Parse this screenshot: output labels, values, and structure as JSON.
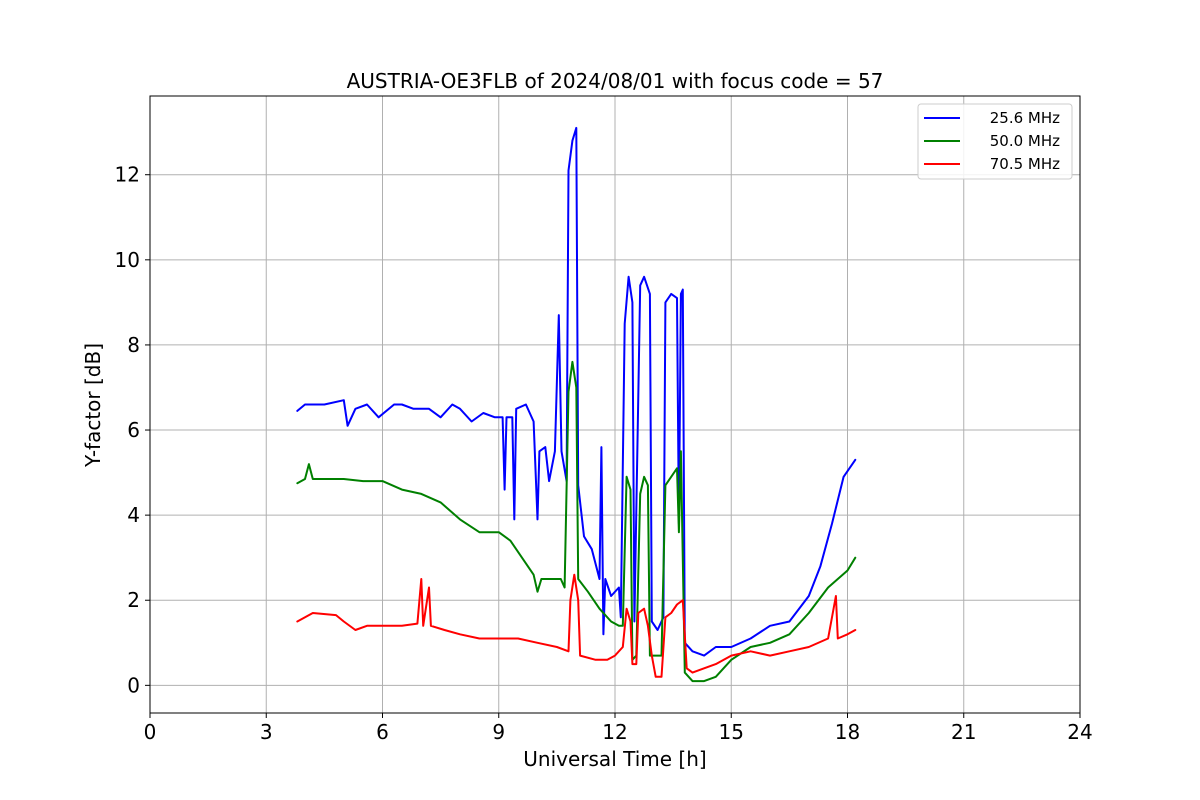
{
  "chart_data": {
    "type": "line",
    "title": "AUSTRIA-OE3FLB of 2024/08/01 with focus code = 57",
    "xlabel": "Universal Time [h]",
    "ylabel": "Y-factor [dB]",
    "xlim": [
      0,
      24
    ],
    "ylim": [
      -0.65,
      13.85
    ],
    "xticks": [
      0,
      3,
      6,
      9,
      12,
      15,
      18,
      21,
      24
    ],
    "yticks": [
      0,
      2,
      4,
      6,
      8,
      10,
      12
    ],
    "grid": true,
    "legend_position": "top-right",
    "series": [
      {
        "name": "25.6 MHz",
        "color": "#0000ff",
        "points": [
          [
            3.8,
            6.45
          ],
          [
            4.0,
            6.6
          ],
          [
            4.5,
            6.6
          ],
          [
            5.0,
            6.7
          ],
          [
            5.1,
            6.1
          ],
          [
            5.3,
            6.5
          ],
          [
            5.6,
            6.6
          ],
          [
            5.9,
            6.3
          ],
          [
            6.3,
            6.6
          ],
          [
            6.5,
            6.6
          ],
          [
            6.8,
            6.5
          ],
          [
            7.2,
            6.5
          ],
          [
            7.5,
            6.3
          ],
          [
            7.8,
            6.6
          ],
          [
            8.0,
            6.5
          ],
          [
            8.3,
            6.2
          ],
          [
            8.6,
            6.4
          ],
          [
            8.9,
            6.3
          ],
          [
            9.1,
            6.3
          ],
          [
            9.15,
            4.6
          ],
          [
            9.2,
            6.3
          ],
          [
            9.35,
            6.3
          ],
          [
            9.4,
            3.9
          ],
          [
            9.45,
            6.5
          ],
          [
            9.7,
            6.6
          ],
          [
            9.9,
            6.2
          ],
          [
            10.0,
            3.9
          ],
          [
            10.05,
            5.5
          ],
          [
            10.2,
            5.6
          ],
          [
            10.3,
            4.8
          ],
          [
            10.45,
            5.5
          ],
          [
            10.55,
            8.7
          ],
          [
            10.62,
            5.5
          ],
          [
            10.75,
            4.8
          ],
          [
            10.8,
            12.1
          ],
          [
            10.9,
            12.8
          ],
          [
            11.0,
            13.1
          ],
          [
            11.05,
            4.7
          ],
          [
            11.2,
            3.5
          ],
          [
            11.4,
            3.2
          ],
          [
            11.6,
            2.5
          ],
          [
            11.65,
            5.6
          ],
          [
            11.7,
            1.2
          ],
          [
            11.75,
            2.5
          ],
          [
            11.9,
            2.1
          ],
          [
            12.1,
            2.3
          ],
          [
            12.15,
            1.6
          ],
          [
            12.25,
            8.5
          ],
          [
            12.35,
            9.6
          ],
          [
            12.45,
            9.0
          ],
          [
            12.5,
            1.5
          ],
          [
            12.65,
            9.4
          ],
          [
            12.75,
            9.6
          ],
          [
            12.9,
            9.2
          ],
          [
            12.95,
            1.5
          ],
          [
            13.1,
            1.3
          ],
          [
            13.25,
            1.6
          ],
          [
            13.3,
            9.0
          ],
          [
            13.45,
            9.2
          ],
          [
            13.6,
            9.1
          ],
          [
            13.65,
            3.8
          ],
          [
            13.7,
            9.2
          ],
          [
            13.75,
            9.3
          ],
          [
            13.8,
            1.0
          ],
          [
            14.0,
            0.8
          ],
          [
            14.3,
            0.7
          ],
          [
            14.6,
            0.9
          ],
          [
            15.0,
            0.9
          ],
          [
            15.5,
            1.1
          ],
          [
            16.0,
            1.4
          ],
          [
            16.5,
            1.5
          ],
          [
            17.0,
            2.1
          ],
          [
            17.3,
            2.8
          ],
          [
            17.6,
            3.8
          ],
          [
            17.9,
            4.9
          ],
          [
            18.2,
            5.3
          ]
        ]
      },
      {
        "name": "50.0 MHz",
        "color": "#008000",
        "points": [
          [
            3.8,
            4.75
          ],
          [
            4.0,
            4.85
          ],
          [
            4.1,
            5.2
          ],
          [
            4.2,
            4.85
          ],
          [
            5.0,
            4.85
          ],
          [
            5.5,
            4.8
          ],
          [
            6.0,
            4.8
          ],
          [
            6.5,
            4.6
          ],
          [
            7.0,
            4.5
          ],
          [
            7.5,
            4.3
          ],
          [
            8.0,
            3.9
          ],
          [
            8.5,
            3.6
          ],
          [
            9.0,
            3.6
          ],
          [
            9.3,
            3.4
          ],
          [
            9.6,
            3.0
          ],
          [
            9.9,
            2.6
          ],
          [
            10.0,
            2.2
          ],
          [
            10.1,
            2.5
          ],
          [
            10.6,
            2.5
          ],
          [
            10.7,
            2.3
          ],
          [
            10.8,
            6.9
          ],
          [
            10.9,
            7.6
          ],
          [
            11.0,
            7.0
          ],
          [
            11.05,
            2.5
          ],
          [
            11.3,
            2.2
          ],
          [
            11.6,
            1.8
          ],
          [
            11.9,
            1.5
          ],
          [
            12.1,
            1.4
          ],
          [
            12.2,
            1.4
          ],
          [
            12.3,
            4.9
          ],
          [
            12.4,
            4.6
          ],
          [
            12.45,
            0.6
          ],
          [
            12.55,
            0.7
          ],
          [
            12.65,
            4.5
          ],
          [
            12.75,
            4.9
          ],
          [
            12.85,
            4.7
          ],
          [
            12.9,
            0.7
          ],
          [
            13.1,
            0.7
          ],
          [
            13.2,
            0.7
          ],
          [
            13.3,
            4.7
          ],
          [
            13.6,
            5.1
          ],
          [
            13.65,
            3.6
          ],
          [
            13.7,
            5.5
          ],
          [
            13.8,
            0.3
          ],
          [
            14.0,
            0.1
          ],
          [
            14.3,
            0.1
          ],
          [
            14.6,
            0.2
          ],
          [
            15.0,
            0.6
          ],
          [
            15.5,
            0.9
          ],
          [
            16.0,
            1.0
          ],
          [
            16.5,
            1.2
          ],
          [
            17.0,
            1.7
          ],
          [
            17.5,
            2.3
          ],
          [
            18.0,
            2.7
          ],
          [
            18.2,
            3.0
          ]
        ]
      },
      {
        "name": "70.5 MHz",
        "color": "#ff0000",
        "points": [
          [
            3.8,
            1.5
          ],
          [
            4.2,
            1.7
          ],
          [
            4.8,
            1.65
          ],
          [
            5.0,
            1.5
          ],
          [
            5.3,
            1.3
          ],
          [
            5.6,
            1.4
          ],
          [
            6.0,
            1.4
          ],
          [
            6.5,
            1.4
          ],
          [
            6.9,
            1.45
          ],
          [
            7.0,
            2.5
          ],
          [
            7.05,
            1.4
          ],
          [
            7.2,
            2.3
          ],
          [
            7.25,
            1.4
          ],
          [
            7.6,
            1.3
          ],
          [
            8.0,
            1.2
          ],
          [
            8.5,
            1.1
          ],
          [
            9.0,
            1.1
          ],
          [
            9.5,
            1.1
          ],
          [
            10.0,
            1.0
          ],
          [
            10.5,
            0.9
          ],
          [
            10.8,
            0.8
          ],
          [
            10.85,
            2.0
          ],
          [
            10.95,
            2.6
          ],
          [
            11.05,
            2.0
          ],
          [
            11.1,
            0.7
          ],
          [
            11.5,
            0.6
          ],
          [
            11.8,
            0.6
          ],
          [
            12.0,
            0.7
          ],
          [
            12.2,
            0.9
          ],
          [
            12.3,
            1.8
          ],
          [
            12.4,
            1.5
          ],
          [
            12.45,
            0.5
          ],
          [
            12.55,
            0.5
          ],
          [
            12.6,
            1.7
          ],
          [
            12.75,
            1.8
          ],
          [
            12.85,
            1.4
          ],
          [
            12.95,
            0.7
          ],
          [
            13.05,
            0.2
          ],
          [
            13.2,
            0.2
          ],
          [
            13.3,
            1.6
          ],
          [
            13.45,
            1.7
          ],
          [
            13.6,
            1.9
          ],
          [
            13.75,
            2.0
          ],
          [
            13.85,
            0.4
          ],
          [
            14.0,
            0.3
          ],
          [
            14.3,
            0.4
          ],
          [
            14.6,
            0.5
          ],
          [
            15.0,
            0.7
          ],
          [
            15.5,
            0.8
          ],
          [
            16.0,
            0.7
          ],
          [
            16.5,
            0.8
          ],
          [
            17.0,
            0.9
          ],
          [
            17.5,
            1.1
          ],
          [
            17.7,
            2.1
          ],
          [
            17.75,
            1.1
          ],
          [
            18.0,
            1.2
          ],
          [
            18.2,
            1.3
          ]
        ]
      }
    ]
  }
}
